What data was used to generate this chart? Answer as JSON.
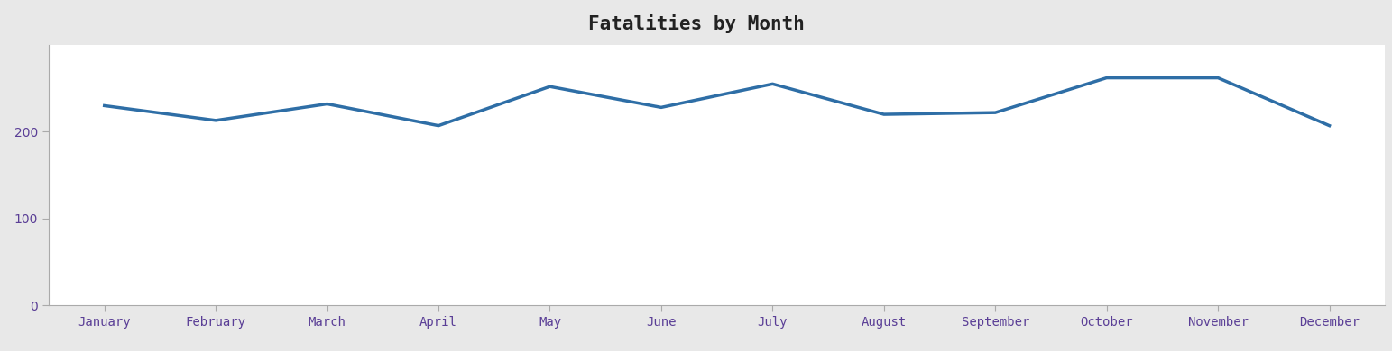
{
  "title": "Fatalities by Month",
  "months": [
    "January",
    "February",
    "March",
    "April",
    "May",
    "June",
    "July",
    "August",
    "September",
    "October",
    "November",
    "December"
  ],
  "values": [
    230,
    213,
    232,
    207,
    252,
    228,
    255,
    220,
    222,
    262,
    262,
    207
  ],
  "line_color": "#2e6ea6",
  "line_width": 2.5,
  "ylim": [
    0,
    300
  ],
  "yticks": [
    0,
    100,
    200
  ],
  "background_color": "#ffffff",
  "title_area_color": "#e8e8e8",
  "title_fontsize": 15,
  "axis_label_color": "#5a3e96",
  "tick_label_fontsize": 10
}
